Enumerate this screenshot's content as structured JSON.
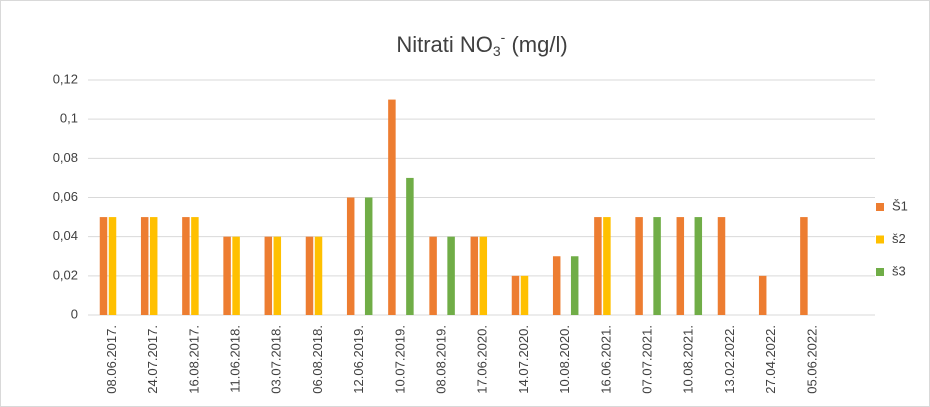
{
  "chart_data": {
    "type": "bar",
    "title": {
      "text": "Nitrati  NO",
      "sub": "3",
      "sup": "-",
      "unit": " (mg/l)"
    },
    "categories": [
      "08.06.2017.",
      "24.07.2017.",
      "16.08.2017.",
      "11.06.2018.",
      "03.07.2018.",
      "06.08.2018.",
      "12.06.2019.",
      "10.07.2019.",
      "08.08.2019.",
      "17.06.2020.",
      "14.07.2020.",
      "10.08.2020.",
      "16.06.2021.",
      "07.07.2021.",
      "10.08.2021.",
      "13.02.2022.",
      "27.04.2022.",
      "05.06.2022."
    ],
    "series": [
      {
        "name": "Š1",
        "color": "#ed7d31",
        "values": [
          0.05,
          0.05,
          0.05,
          0.04,
          0.04,
          0.04,
          0.06,
          0.11,
          0.04,
          0.04,
          0.02,
          0.03,
          0.05,
          0.05,
          0.05,
          0.05,
          0.02,
          0.05
        ]
      },
      {
        "name": "š2",
        "color": "#ffc000",
        "values": [
          0.05,
          0.05,
          0.05,
          0.04,
          0.04,
          0.04,
          null,
          null,
          null,
          0.04,
          0.02,
          null,
          0.05,
          null,
          null,
          null,
          null,
          null
        ]
      },
      {
        "name": "š3",
        "color": "#70ad47",
        "values": [
          null,
          null,
          null,
          null,
          null,
          null,
          0.06,
          0.07,
          0.04,
          null,
          null,
          0.03,
          null,
          0.05,
          0.05,
          null,
          null,
          null
        ]
      }
    ],
    "ylim": [
      0,
      0.12
    ],
    "yticks": [
      0,
      {
        "value": 0.02,
        "label": "0,02"
      },
      {
        "value": 0.04,
        "label": "0,04"
      },
      {
        "value": 0.06,
        "label": "0,06"
      },
      {
        "value": 0.08,
        "label": "0,08"
      },
      {
        "value": 0.1,
        "label": "0,1"
      },
      {
        "value": 0.12,
        "label": "0,12"
      }
    ],
    "grid": true,
    "legend": "right"
  }
}
